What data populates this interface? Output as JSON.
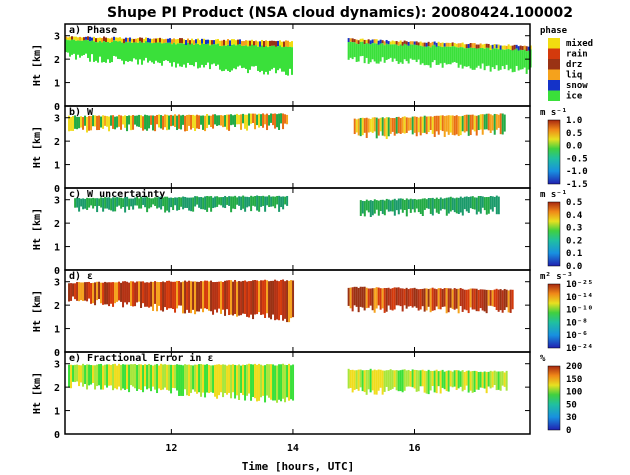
{
  "title": "Shupe PI Product (NSA cloud dynamics): 20080424.100002",
  "x_axis": {
    "label": "Time [hours, UTC]",
    "range": [
      10.25,
      17.9
    ],
    "ticks": [
      12,
      14,
      16
    ],
    "tick_labels": [
      "12",
      "14",
      "16"
    ]
  },
  "y_axis": {
    "label": "Ht [km]",
    "range": [
      0,
      3.5
    ],
    "ticks": [
      0,
      1,
      2,
      3
    ],
    "tick_labels": [
      "0",
      "1",
      "2",
      "3"
    ]
  },
  "colors": {
    "mixed": "#f2dc10",
    "rain": "#d43a0c",
    "drz": "#9a3214",
    "liq": "#f5a21c",
    "snow": "#1432c8",
    "ice": "#3ae03a",
    "w_low": "#22aa44",
    "w_high": "#e86e14",
    "unc": "#1a9a6a",
    "eps_high": "#b43214",
    "err_low": "#a8e63c",
    "err_mid": "#f0dc1e"
  },
  "chart_data": [
    {
      "type": "heatmap",
      "panel": "a) Phase",
      "colorbar_title": "phase",
      "legend_labels": [
        "mixed",
        "rain",
        "drz",
        "liq",
        "snow",
        "ice"
      ],
      "ylim": [
        0,
        3.5
      ],
      "cloud_segments": [
        {
          "t_start": 10.25,
          "t_end": 14.0,
          "base_km": [
            2.3,
            1.6
          ],
          "top_km": [
            3.0,
            2.8
          ]
        },
        {
          "t_start": 14.9,
          "t_end": 17.9,
          "base_km": [
            2.2,
            1.7
          ],
          "top_km": [
            2.9,
            2.6
          ]
        }
      ]
    },
    {
      "type": "heatmap",
      "panel": "b) W",
      "colorbar_title": "m s⁻¹",
      "colorbar_ticks": [
        "1.0",
        "0.5",
        "0.0",
        "-0.5",
        "-1.0",
        "-1.5"
      ],
      "colorbar_range": [
        -1.5,
        1.0
      ],
      "ylim": [
        0,
        3.5
      ],
      "cloud_segments": [
        {
          "t_start": 10.3,
          "t_end": 13.9,
          "base_km": [
            2.7,
            2.8
          ],
          "top_km": [
            3.1,
            3.2
          ]
        },
        {
          "t_start": 15.0,
          "t_end": 17.5,
          "base_km": [
            2.4,
            2.6
          ],
          "top_km": [
            3.0,
            3.2
          ]
        }
      ]
    },
    {
      "type": "heatmap",
      "panel": "c) W uncertainty",
      "colorbar_title": "m s⁻¹",
      "colorbar_ticks": [
        "0.5",
        "0.4",
        "0.3",
        "0.2",
        "0.1",
        "0.0"
      ],
      "colorbar_range": [
        0.0,
        0.5
      ],
      "ylim": [
        0,
        3.5
      ],
      "cloud_segments": [
        {
          "t_start": 10.4,
          "t_end": 13.9,
          "base_km": [
            2.8,
            2.8
          ],
          "top_km": [
            3.1,
            3.2
          ]
        },
        {
          "t_start": 15.1,
          "t_end": 17.4,
          "base_km": [
            2.6,
            2.7
          ],
          "top_km": [
            3.0,
            3.2
          ]
        }
      ]
    },
    {
      "type": "heatmap",
      "panel": "d) ε",
      "colorbar_title": "m² s⁻³",
      "colorbar_ticks": [
        "10⁻²⁵",
        "10⁻¹⁴",
        "10⁻¹⁰",
        "10⁻⁸",
        "10⁻⁶",
        "10⁻²⁴"
      ],
      "ylim": [
        0,
        3.5
      ],
      "cloud_segments": [
        {
          "t_start": 10.3,
          "t_end": 14.0,
          "base_km": [
            2.4,
            1.6
          ],
          "top_km": [
            3.0,
            3.1
          ]
        },
        {
          "t_start": 14.9,
          "t_end": 17.6,
          "base_km": [
            2.0,
            2.0
          ],
          "top_km": [
            2.8,
            2.7
          ]
        }
      ]
    },
    {
      "type": "heatmap",
      "panel": "e) Fractional Error in ε",
      "colorbar_title": "%",
      "colorbar_ticks": [
        "200",
        "150",
        "100",
        "50",
        "30",
        "0"
      ],
      "colorbar_range": [
        0,
        200
      ],
      "ylim": [
        0,
        3.5
      ],
      "cloud_segments": [
        {
          "t_start": 10.3,
          "t_end": 14.0,
          "base_km": [
            2.3,
            1.6
          ],
          "top_km": [
            3.0,
            3.0
          ]
        },
        {
          "t_start": 14.9,
          "t_end": 17.5,
          "base_km": [
            2.0,
            2.1
          ],
          "top_km": [
            2.8,
            2.7
          ]
        }
      ]
    }
  ]
}
